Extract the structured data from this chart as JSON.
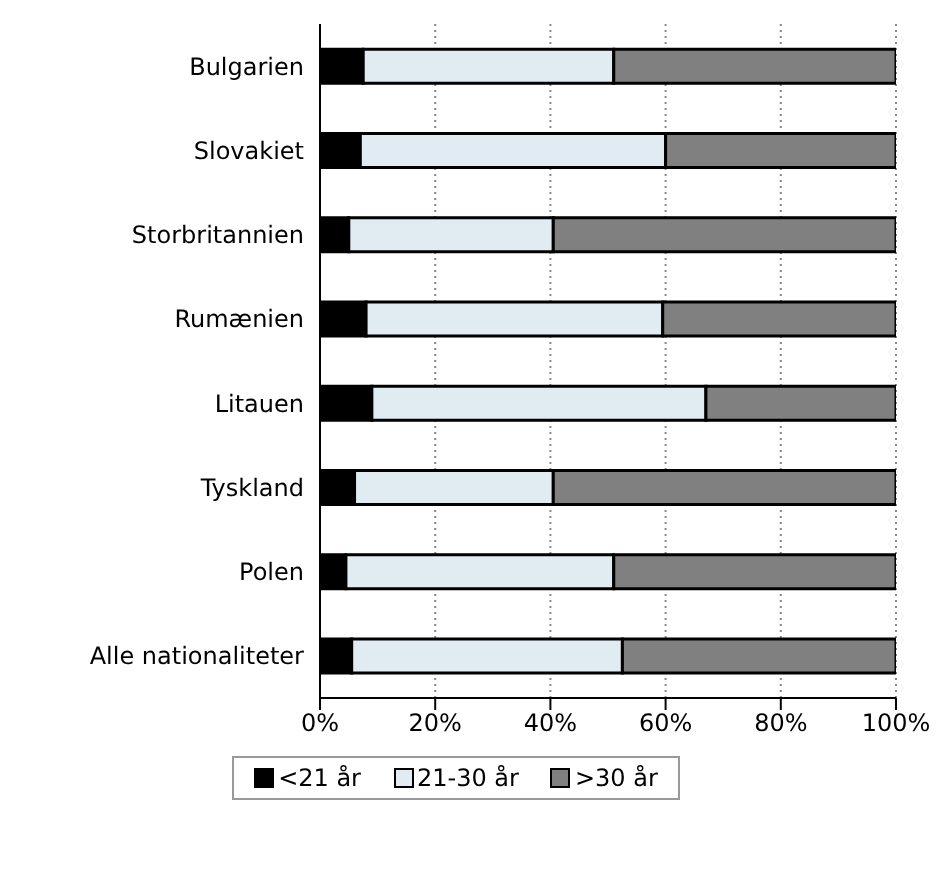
{
  "chart_data": {
    "type": "bar",
    "orientation": "horizontal",
    "stacked": true,
    "categories": [
      "Bulgarien",
      "Slovakiet",
      "Storbritannien",
      "Rumænien",
      "Litauen",
      "Tyskland",
      "Polen",
      "Alle nationaliteter"
    ],
    "series": [
      {
        "name": "<21 år",
        "color": "#000000",
        "values": [
          7.5,
          7,
          5,
          8,
          9,
          6,
          4.5,
          5.5
        ]
      },
      {
        "name": "21-30 år",
        "color": "#e1ebf2",
        "values": [
          43.5,
          53,
          35.5,
          51.5,
          58,
          34.5,
          46.5,
          47
        ]
      },
      {
        "name": ">30 år",
        "color": "#808080",
        "values": [
          49,
          40,
          59.5,
          40.5,
          33,
          59.5,
          49,
          47.5
        ]
      }
    ],
    "xlim": [
      0,
      100
    ],
    "xticks": [
      {
        "value": 0,
        "label": "0%"
      },
      {
        "value": 20,
        "label": "20%"
      },
      {
        "value": 40,
        "label": "40%"
      },
      {
        "value": 60,
        "label": "60%"
      },
      {
        "value": 80,
        "label": "80%"
      },
      {
        "value": 100,
        "label": "100%"
      }
    ],
    "grid": "x",
    "legend": "bottom"
  }
}
